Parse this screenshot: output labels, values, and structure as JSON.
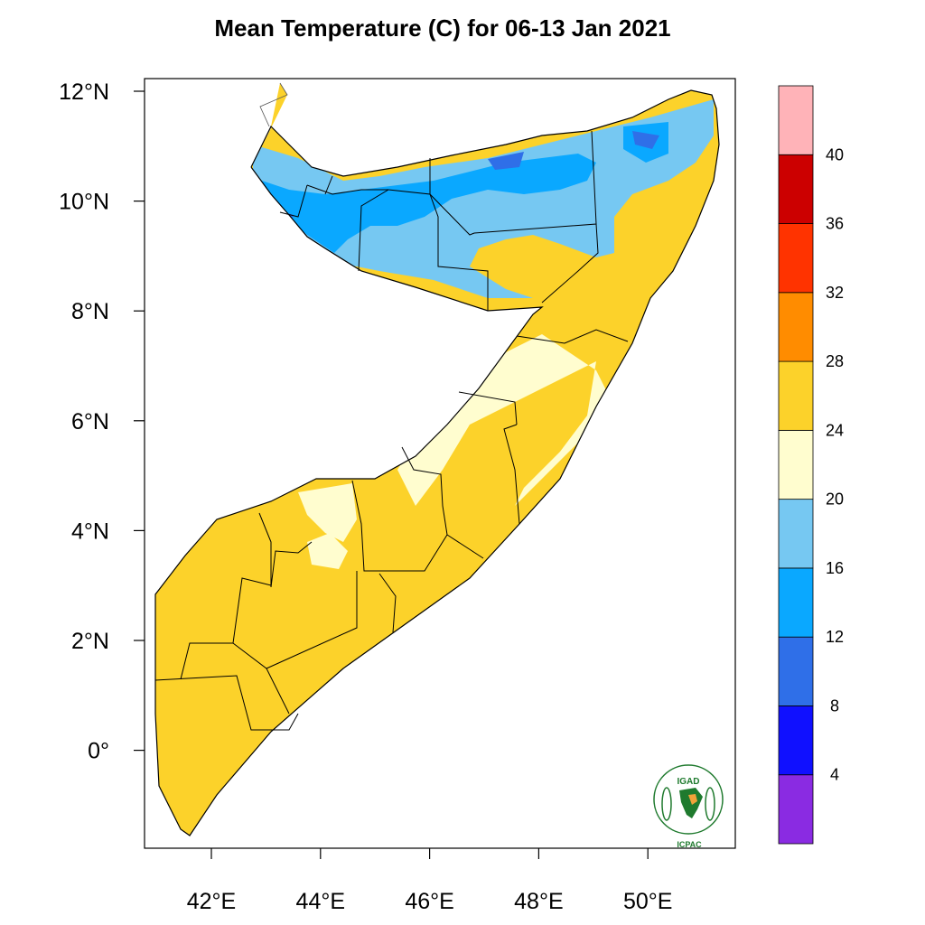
{
  "title": "Mean Temperature (C) for 06-13 Jan 2021",
  "axes": {
    "lon_ticks": [
      {
        "value": 42,
        "label": "42°E"
      },
      {
        "value": 44,
        "label": "44°E"
      },
      {
        "value": 46,
        "label": "46°E"
      },
      {
        "value": 48,
        "label": "48°E"
      },
      {
        "value": 50,
        "label": "50°E"
      }
    ],
    "lat_ticks": [
      {
        "value": 12,
        "label": "12°N"
      },
      {
        "value": 10,
        "label": "10°N"
      },
      {
        "value": 8,
        "label": "8°N"
      },
      {
        "value": 6,
        "label": "6°N"
      },
      {
        "value": 4,
        "label": "4°N"
      },
      {
        "value": 2,
        "label": "2°N"
      },
      {
        "value": 0,
        "label": "0°"
      }
    ]
  },
  "colorbar": {
    "labels": [
      "4",
      "8",
      "12",
      "16",
      "20",
      "24",
      "28",
      "32",
      "36",
      "40"
    ],
    "colors": [
      "#8a2be2",
      "#1010ff",
      "#2f6fe8",
      "#0aa8ff",
      "#76c8f2",
      "#fffdcf",
      "#fcd22a",
      "#ff8c00",
      "#ff3300",
      "#cc0000",
      "#ffb3b8"
    ]
  },
  "legend_colors": {
    "cool": "#76c8f2",
    "cold": "#0aa8ff",
    "colder": "#2f6fe8",
    "mild": "#fffdcf",
    "warm": "#fcd22a"
  },
  "logo": {
    "top_text": "IGAD",
    "bottom_text": "ICPAC"
  }
}
